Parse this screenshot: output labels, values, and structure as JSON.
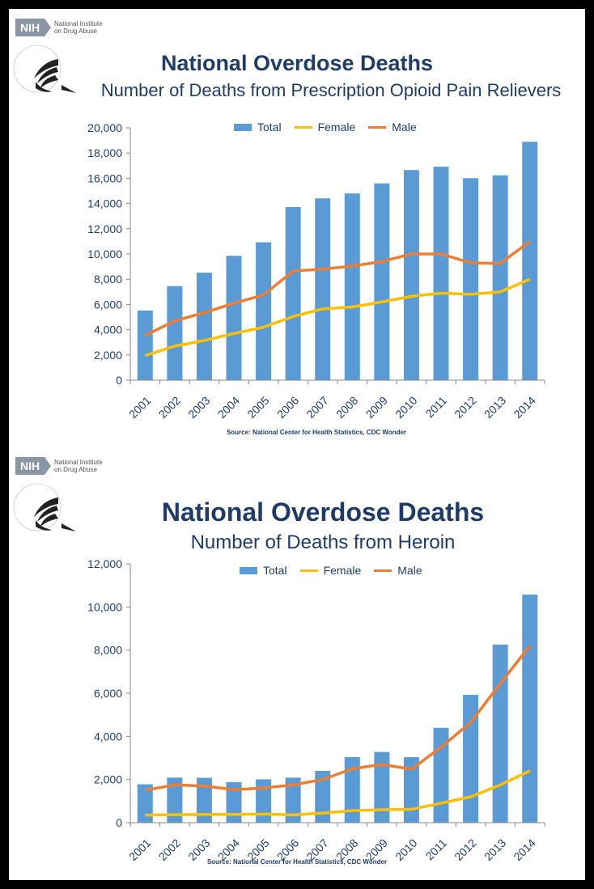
{
  "colors": {
    "total": "#5b9bd5",
    "female": "#ffc000",
    "male": "#ed7d31",
    "text": "#1f3c68",
    "axis": "#888888"
  },
  "logo": {
    "nih": "NIH",
    "nih_sub_line1": "National Institute",
    "nih_sub_line2": "on Drug Abuse",
    "hhs_icon": "hhs-eagle-icon"
  },
  "panels": [
    {
      "title": "National Overdose Deaths",
      "subtitle": "Number of Deaths from Prescription Opioid Pain Relievers",
      "source": "Source: National Center for Health Statistics, CDC Wonder"
    },
    {
      "title": "National Overdose Deaths",
      "subtitle": "Number of Deaths from Heroin",
      "source": "Source: National Center for Health Statistics, CDC Wonder"
    }
  ],
  "legend": {
    "total": "Total",
    "female": "Female",
    "male": "Male"
  },
  "chart_data": [
    {
      "type": "bar",
      "categories": [
        "2001",
        "2002",
        "2003",
        "2004",
        "2005",
        "2006",
        "2007",
        "2008",
        "2009",
        "2010",
        "2011",
        "2012",
        "2013",
        "2014"
      ],
      "series": [
        {
          "name": "Total",
          "type": "bar",
          "values": [
            5528,
            7456,
            8517,
            9857,
            10928,
            13723,
            14408,
            14800,
            15597,
            16651,
            16917,
            16007,
            16235,
            18893
          ]
        },
        {
          "name": "Female",
          "type": "line",
          "values": [
            1950,
            2700,
            3150,
            3700,
            4200,
            5050,
            5650,
            5800,
            6200,
            6650,
            6900,
            6800,
            7000,
            8000
          ]
        },
        {
          "name": "Male",
          "type": "line",
          "values": [
            3550,
            4700,
            5350,
            6100,
            6750,
            8650,
            8800,
            9050,
            9400,
            10000,
            10000,
            9300,
            9250,
            11000
          ]
        }
      ],
      "ylim": [
        0,
        20000
      ],
      "yticks": [
        "0",
        "2,000",
        "4,000",
        "6,000",
        "8,000",
        "10,000",
        "12,000",
        "14,000",
        "16,000",
        "18,000",
        "20,000"
      ],
      "legend_position": "top",
      "grid": false
    },
    {
      "type": "bar",
      "categories": [
        "2001",
        "2002",
        "2003",
        "2004",
        "2005",
        "2006",
        "2007",
        "2008",
        "2009",
        "2010",
        "2011",
        "2012",
        "2013",
        "2014"
      ],
      "series": [
        {
          "name": "Total",
          "type": "bar",
          "values": [
            1779,
            2089,
            2080,
            1878,
            2009,
            2088,
            2399,
            3041,
            3278,
            3036,
            4397,
            5925,
            8257,
            10574
          ]
        },
        {
          "name": "Female",
          "type": "line",
          "values": [
            350,
            370,
            380,
            380,
            400,
            360,
            440,
            560,
            600,
            620,
            900,
            1200,
            1750,
            2400
          ]
        },
        {
          "name": "Male",
          "type": "line",
          "values": [
            1500,
            1750,
            1700,
            1530,
            1610,
            1750,
            2000,
            2500,
            2700,
            2480,
            3500,
            4650,
            6450,
            8200
          ]
        }
      ],
      "ylim": [
        0,
        12000
      ],
      "yticks": [
        "0",
        "2,000",
        "4,000",
        "6,000",
        "8,000",
        "10,000",
        "12,000"
      ],
      "legend_position": "top",
      "grid": false
    }
  ]
}
